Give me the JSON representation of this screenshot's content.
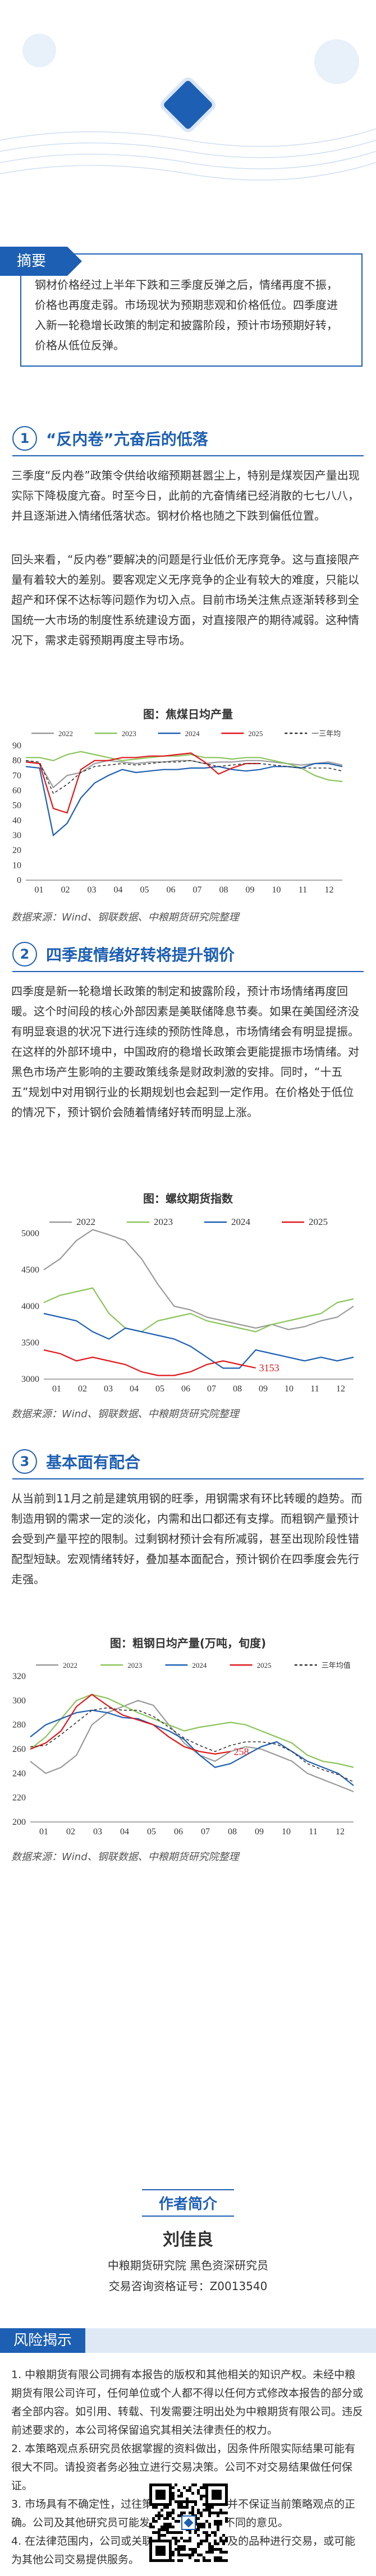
{
  "summary": {
    "label": "摘要",
    "text": "钢材价格经过上半年下跌和三季度反弹之后，情绪再度不振，价格也再度走弱。市场现状为预期悲观和价格低位。四季度进入新一轮稳增长政策的制定和披露阶段，预计市场预期好转，价格从低位反弹。"
  },
  "sections": [
    {
      "num": "1",
      "title": "“反内卷”亢奋后的低落",
      "paragraphs": [
        "三季度“反内卷”政策令供给收缩预期甚嚣尘上，特别是煤炭因产量出现实际下降极度亢奋。时至今日，此前的亢奋情绪已经消散的七七八八，并且逐渐进入情绪低落状态。钢材价格也随之下跌到偏低位置。",
        "回头来看，“反内卷”要解决的问题是行业低价无序竞争。这与直接限产量有着较大的差别。要客观定义无序竞争的企业有较大的难度，只能以超产和环保不达标等问题作为切入点。目前市场关注焦点逐渐转移到全国统一大市场的制度性系统建设方面，对直接限产的期待减弱。这种情况下，需求走弱预期再度主导市场。"
      ],
      "figure_title": "图：焦煤日均产量",
      "source": "数据来源：Wind、钢联数据、中粮期货研究院整理"
    },
    {
      "num": "2",
      "title": "四季度情绪好转将提升钢价",
      "paragraphs": [
        "四季度是新一轮稳增长政策的制定和披露阶段，预计市场情绪再度回暖。这个时间段的核心外部因素是美联储降息节奏。如果在美国经济没有明显衰退的状况下进行连续的预防性降息，市场情绪会有明显提振。在这样的外部环境中，中国政府的稳增长政策会更能提振市场情绪。对黑色市场产生影响的主要政策线条是财政刺激的安排。同时，“十五五”规划中对用钢行业的长期规划也会起到一定作用。在价格处于低位的情况下，预计钢价会随着情绪好转而明显上涨。"
      ],
      "figure_title": "图：螺纹期货指数",
      "source": "数据来源：Wind、钢联数据、中粮期货研究院整理"
    },
    {
      "num": "3",
      "title": "基本面有配合",
      "paragraphs": [
        "从当前到11月之前是建筑用钢的旺季，用钢需求有环比转暖的趋势。而制造用钢的需求一定的淡化，内需和出口都还有支撑。而粗钢产量预计会受到产量平控的限制。过剩钢材预计会有所减弱，甚至出现阶段性错配型短缺。宏观情绪转好，叠加基本面配合，预计钢价在四季度会先行走强。"
      ],
      "figure_title": "图：粗钢日均产量(万吨，旬度)",
      "source": "数据来源：Wind、钢联数据、中粮期货研究院整理"
    }
  ],
  "author": {
    "heading": "作者简介",
    "name": "刘佳良",
    "role": "中粮期货研究院 黑色资深研究员",
    "license": "交易咨询资格证号：Z0013540"
  },
  "risk": {
    "label": "风险揭示",
    "items": [
      "1. 中粮期货有限公司拥有本报告的版权和其他相关的知识产权。未经中粮期货有限公司许可，任何单位或个人都不得以任何方式修改本报告的部分或者全部内容。如引用、转载、刊发需要注明出处为中粮期货有限公司。违反前述要求的，本公司将保留追究其相关法律责任的权力。",
      "2. 本策略观点系研究员依据掌握的资料做出，因条件所限实际结果可能有很大不同。请投资者务必独立进行交易决策。公司不对交易结果做任何保证。",
      "3. 市场具有不确定性，过往策略观点的吻合也并不保证当前策略观点的正确。公司及其他研究员可能发表与本策略观点不同的意见。",
      "4. 在法律范围内，公司或关联机构可能会就涉及的品种进行交易，或可能为其他公司交易提供服务。"
    ]
  },
  "colors": {
    "brand": "#1d5fb3",
    "s2022": "#9a9a9a",
    "s2023": "#8ac45a",
    "s2024": "#1d5fb3",
    "s2025": "#e0161a",
    "s3yr": "#333333"
  },
  "chart_data": [
    {
      "type": "line",
      "title": "图：焦煤日均产量",
      "x_ticks": [
        "01",
        "02",
        "03",
        "04",
        "05",
        "06",
        "07",
        "08",
        "09",
        "10",
        "11",
        "12"
      ],
      "ylim": [
        0,
        90
      ],
      "y_ticks": [
        0,
        10,
        20,
        30,
        40,
        50,
        60,
        70,
        80,
        90
      ],
      "legend": [
        "2022",
        "2023",
        "2024",
        "2025",
        "一三年均"
      ],
      "series": [
        {
          "name": "2022",
          "values": [
            80,
            78,
            62,
            70,
            72,
            78,
            80,
            79,
            78,
            79,
            79,
            80,
            80,
            78,
            79,
            79,
            80,
            80,
            79,
            78,
            77,
            78,
            79,
            77
          ]
        },
        {
          "name": "2023",
          "values": [
            82,
            82,
            80,
            84,
            86,
            84,
            82,
            80,
            81,
            82,
            83,
            83,
            84,
            82,
            82,
            81,
            82,
            82,
            80,
            78,
            75,
            70,
            67,
            66
          ]
        },
        {
          "name": "2024",
          "values": [
            76,
            75,
            30,
            38,
            55,
            65,
            70,
            74,
            72,
            73,
            74,
            74,
            75,
            75,
            76,
            74,
            73,
            74,
            76,
            76,
            75,
            78,
            78,
            76
          ]
        },
        {
          "name": "2025",
          "values": [
            79,
            78,
            48,
            45,
            74,
            80,
            80,
            82,
            82,
            83,
            83,
            84,
            85,
            79,
            71,
            75,
            78,
            78,
            null,
            null,
            null,
            null,
            null,
            null
          ]
        },
        {
          "name": "一三年均",
          "values": [
            80,
            79,
            58,
            64,
            72,
            76,
            77,
            78,
            77,
            78,
            79,
            79,
            80,
            78,
            76,
            77,
            78,
            78,
            77,
            76,
            75,
            75,
            75,
            73
          ]
        }
      ]
    },
    {
      "type": "line",
      "title": "图：螺纹期货指数",
      "x_ticks": [
        "01",
        "02",
        "03",
        "04",
        "05",
        "06",
        "07",
        "08",
        "09",
        "10",
        "11",
        "12"
      ],
      "ylim": [
        3000,
        5000
      ],
      "y_ticks": [
        3000,
        3500,
        4000,
        4500,
        5000
      ],
      "legend": [
        "2022",
        "2023",
        "2024",
        "2025"
      ],
      "annotation": "3153",
      "series": [
        {
          "name": "2022",
          "values": [
            4500,
            4650,
            4900,
            5050,
            4980,
            4900,
            4650,
            4300,
            4000,
            3950,
            3850,
            3800,
            3750,
            3700,
            3750,
            3680,
            3720,
            3800,
            3850,
            4000
          ]
        },
        {
          "name": "2023",
          "values": [
            4050,
            4150,
            4200,
            4250,
            3900,
            3700,
            3650,
            3800,
            3850,
            3900,
            3800,
            3750,
            3700,
            3650,
            3750,
            3800,
            3850,
            3900,
            4050,
            4100
          ]
        },
        {
          "name": "2024",
          "values": [
            3900,
            3850,
            3800,
            3650,
            3550,
            3700,
            3650,
            3600,
            3550,
            3450,
            3300,
            3150,
            3150,
            3400,
            3350,
            3300,
            3250,
            3300,
            3250,
            3300
          ]
        },
        {
          "name": "2025",
          "values": [
            3400,
            3350,
            3250,
            3300,
            3250,
            3200,
            3100,
            3050,
            3050,
            3100,
            3200,
            3250,
            3200,
            3153,
            null,
            null,
            null,
            null,
            null,
            null
          ]
        }
      ]
    },
    {
      "type": "line",
      "title": "图：粗钢日均产量(万吨，旬度)",
      "x_ticks": [
        "01",
        "02",
        "03",
        "04",
        "05",
        "06",
        "07",
        "08",
        "09",
        "10",
        "11",
        "12"
      ],
      "ylim": [
        200,
        320
      ],
      "y_ticks": [
        200,
        220,
        240,
        260,
        280,
        300,
        320
      ],
      "legend": [
        "2022",
        "2023",
        "2024",
        "2025",
        "三年均值"
      ],
      "annotation": "258",
      "series": [
        {
          "name": "2022",
          "values": [
            250,
            240,
            245,
            255,
            280,
            290,
            295,
            300,
            296,
            280,
            265,
            255,
            250,
            258,
            262,
            260,
            255,
            250,
            240,
            235,
            230,
            225
          ]
        },
        {
          "name": "2023",
          "values": [
            260,
            270,
            285,
            300,
            305,
            302,
            296,
            290,
            285,
            280,
            275,
            278,
            280,
            282,
            280,
            275,
            270,
            265,
            255,
            250,
            248,
            245
          ]
        },
        {
          "name": "2024",
          "values": [
            270,
            280,
            285,
            290,
            292,
            290,
            286,
            285,
            280,
            275,
            268,
            255,
            245,
            248,
            255,
            262,
            266,
            258,
            250,
            245,
            240,
            230
          ]
        },
        {
          "name": "2025",
          "values": [
            260,
            265,
            275,
            295,
            305,
            296,
            288,
            284,
            280,
            270,
            262,
            258,
            256,
            258,
            null,
            null,
            null,
            null,
            null,
            null,
            null,
            null
          ]
        },
        {
          "name": "三年均值",
          "values": [
            262,
            263,
            272,
            282,
            292,
            294,
            292,
            292,
            287,
            278,
            269,
            263,
            258,
            263,
            266,
            266,
            264,
            258,
            248,
            243,
            239,
            233
          ]
        }
      ]
    }
  ]
}
